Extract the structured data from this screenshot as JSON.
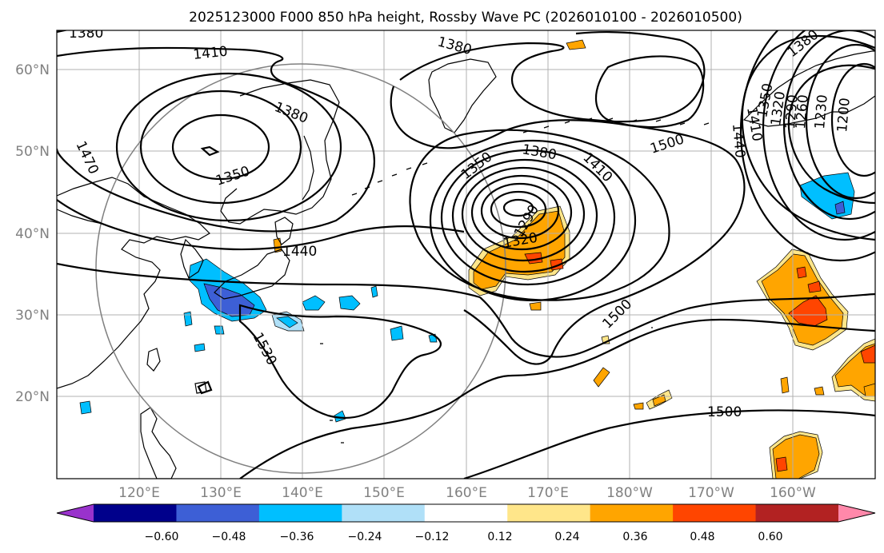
{
  "title": "2025123000 F000 850 hPa height, Rossby Wave PC (2026010100 - 2026010500)",
  "axes": {
    "lon_ticks": [
      "120°E",
      "130°E",
      "140°E",
      "150°E",
      "160°E",
      "170°E",
      "180°W",
      "170°W",
      "160°W"
    ],
    "lat_ticks": [
      "60°N",
      "50°N",
      "40°N",
      "30°N",
      "20°N"
    ]
  },
  "contour_labels": [
    "1380",
    "1410",
    "1470",
    "1350",
    "1380",
    "1440",
    "1530",
    "1380",
    "1350",
    "1380",
    "1410",
    "1320",
    "1290",
    "1500",
    "1500",
    "1500",
    "1380",
    "1350",
    "1320",
    "1290",
    "1260",
    "1230",
    "1200",
    "1410",
    "1440"
  ],
  "colorbar": {
    "ticks": [
      "−0.60",
      "−0.48",
      "−0.36",
      "−0.24",
      "−0.12",
      "0.12",
      "0.24",
      "0.36",
      "0.48",
      "0.60"
    ],
    "colors": [
      "#9932cc",
      "#00008b",
      "#3d5fd6",
      "#00bfff",
      "#b0e0f8",
      "#ffffff",
      "#ffe68a",
      "#ffa500",
      "#ff4500",
      "#b22222",
      "#ff88aa"
    ]
  },
  "chart_data": {
    "type": "map",
    "projection": "plate carree",
    "lon_range": [
      "110°E",
      "150°W"
    ],
    "lat_range": [
      "10°N",
      "65°N"
    ],
    "fields": [
      "850 hPa height contours (m)",
      "Rossby wave PC shading"
    ],
    "contour_interval": 30,
    "colorbar_levels": [
      -0.6,
      -0.48,
      -0.36,
      -0.24,
      -0.12,
      0.12,
      0.24,
      0.36,
      0.48,
      0.6
    ],
    "grid": true
  }
}
